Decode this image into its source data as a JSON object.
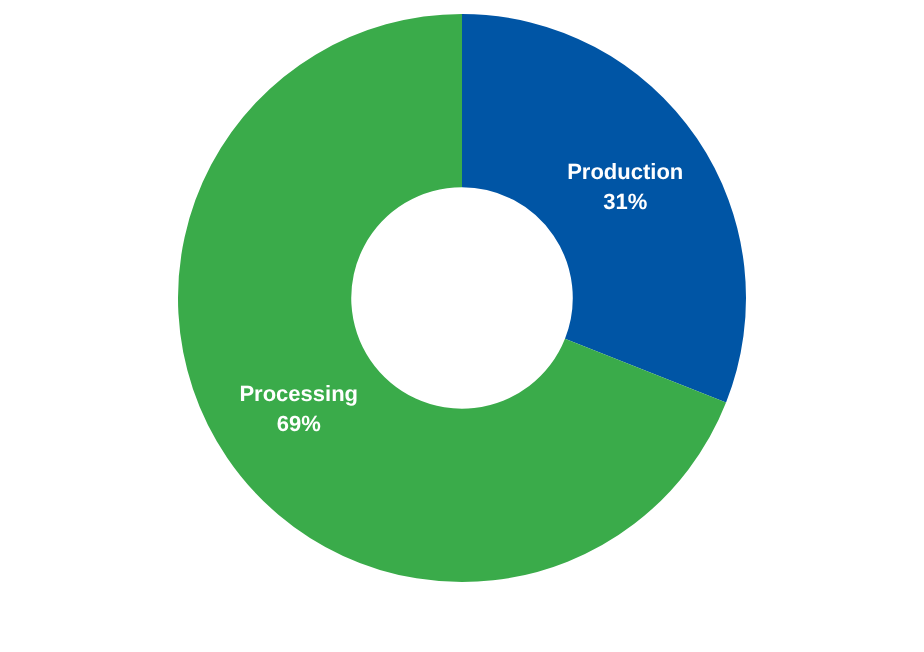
{
  "chart_data": {
    "type": "donut",
    "categories": [
      "Production",
      "Processing"
    ],
    "values": [
      31,
      69
    ],
    "colors": [
      "#0055a5",
      "#3aab4a"
    ],
    "value_labels": [
      "31%",
      "69%"
    ],
    "legend": false
  }
}
